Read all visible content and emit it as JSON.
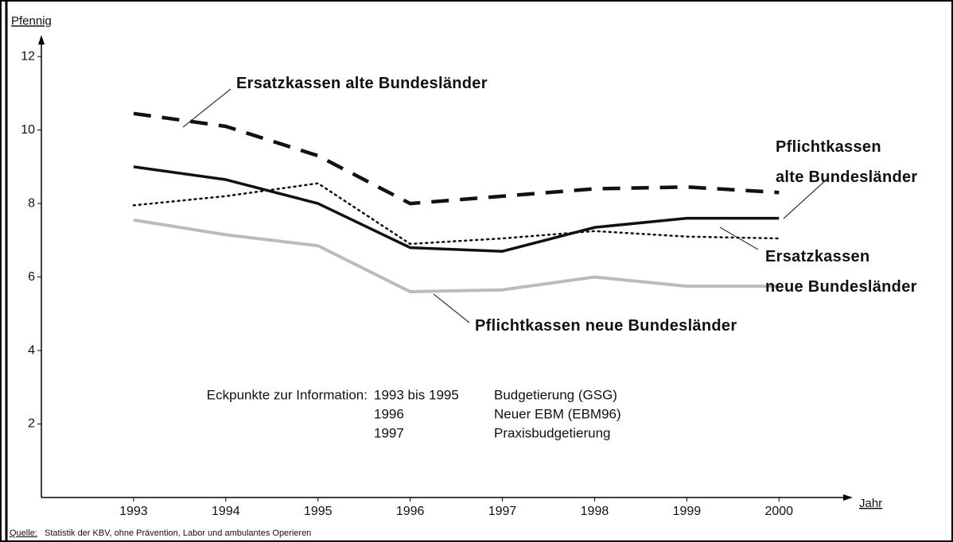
{
  "chart_data": {
    "type": "line",
    "y_label": "Pfennig",
    "x_label": "Jahr",
    "source_label": "Quelle:",
    "source": " Statistik der KBV, ohne Prävention, Labor und ambulantes Operieren",
    "x": [
      1993,
      1994,
      1995,
      1996,
      1997,
      1998,
      1999,
      2000
    ],
    "xlim": [
      1992,
      2000.8
    ],
    "xticks": [
      1993,
      1994,
      1995,
      1996,
      1997,
      1998,
      1999,
      2000
    ],
    "ylim": [
      0,
      12.5
    ],
    "yticks": [
      2,
      4,
      6,
      8,
      10,
      12
    ],
    "grid": false,
    "series": [
      {
        "name": "Ersatzkassen alte Bundesländer",
        "color": "#111111",
        "dash": "dashed",
        "values": [
          10.45,
          10.1,
          9.3,
          8.0,
          8.2,
          8.4,
          8.45,
          8.3
        ]
      },
      {
        "name": "Pflichtkassen\nalte Bundesländer",
        "color": "#111111",
        "dash": "solid",
        "values": [
          9.0,
          8.65,
          8.0,
          6.8,
          6.7,
          7.35,
          7.6,
          7.6
        ]
      },
      {
        "name": "Ersatzkassen\nneue Bundesländer",
        "color": "#111111",
        "dash": "dotted",
        "values": [
          7.95,
          8.2,
          8.55,
          6.9,
          7.05,
          7.25,
          7.1,
          7.05
        ]
      },
      {
        "name": "Pflichtkassen neue Bundesländer",
        "color": "#bbbbbb",
        "dash": "solid",
        "values": [
          7.55,
          7.15,
          6.85,
          5.6,
          5.65,
          6.0,
          5.75,
          5.75
        ]
      }
    ],
    "notes": {
      "title": "Eckpunkte zur Information:",
      "rows": [
        [
          "1993 bis 1995",
          "Budgetierung (GSG)"
        ],
        [
          "1996",
          "Neuer EBM (EBM96)"
        ],
        [
          "1997",
          "Praxisbudgetierung"
        ]
      ]
    }
  }
}
